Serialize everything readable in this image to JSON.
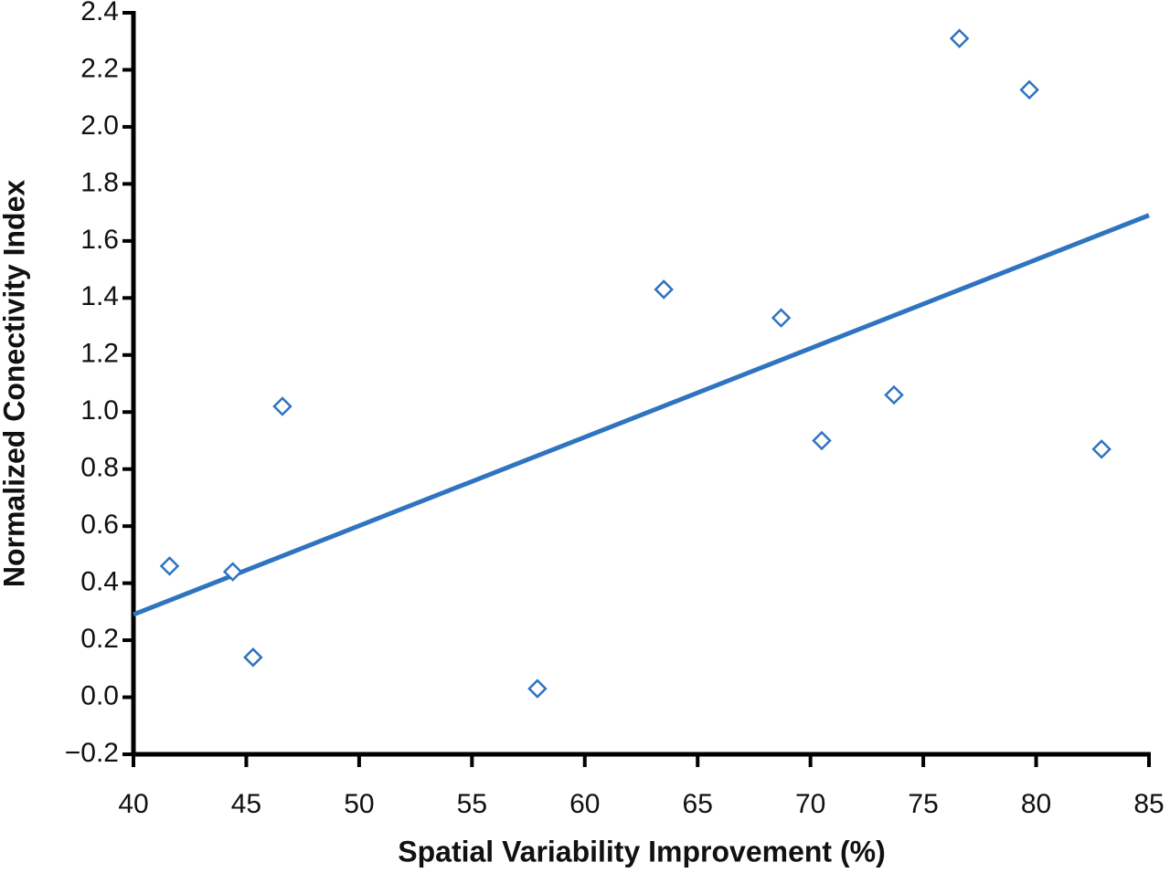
{
  "chart_data": {
    "type": "scatter",
    "x_label": "Spatial Variability Improvement (%)",
    "y_label": "Normalized Conectivity Index",
    "color": "#2f74c0",
    "x": [
      41.6,
      44.4,
      45.3,
      46.6,
      57.9,
      63.5,
      68.7,
      70.5,
      73.7,
      76.6,
      79.7,
      82.9
    ],
    "values": [
      0.46,
      0.44,
      0.14,
      1.02,
      0.03,
      1.43,
      1.33,
      0.9,
      1.06,
      2.31,
      2.13,
      0.87
    ],
    "trendline": {
      "x": [
        40,
        85
      ],
      "values": [
        0.29,
        1.69
      ]
    },
    "xlim": [
      40,
      85
    ],
    "xticks": [
      40,
      45,
      50,
      55,
      60,
      65,
      70,
      75,
      80,
      85
    ],
    "ylim": [
      -0.2,
      2.4
    ],
    "yticks": [
      {
        "value": -0.2,
        "label": "−0.2"
      },
      {
        "value": 0,
        "label": "0.0"
      },
      0.2,
      0.4,
      0.6,
      0.8,
      {
        "value": 1,
        "label": "1.0"
      },
      1.2,
      1.4,
      1.6,
      1.8,
      {
        "value": 2,
        "label": "2.0"
      },
      2.2,
      2.4
    ]
  }
}
